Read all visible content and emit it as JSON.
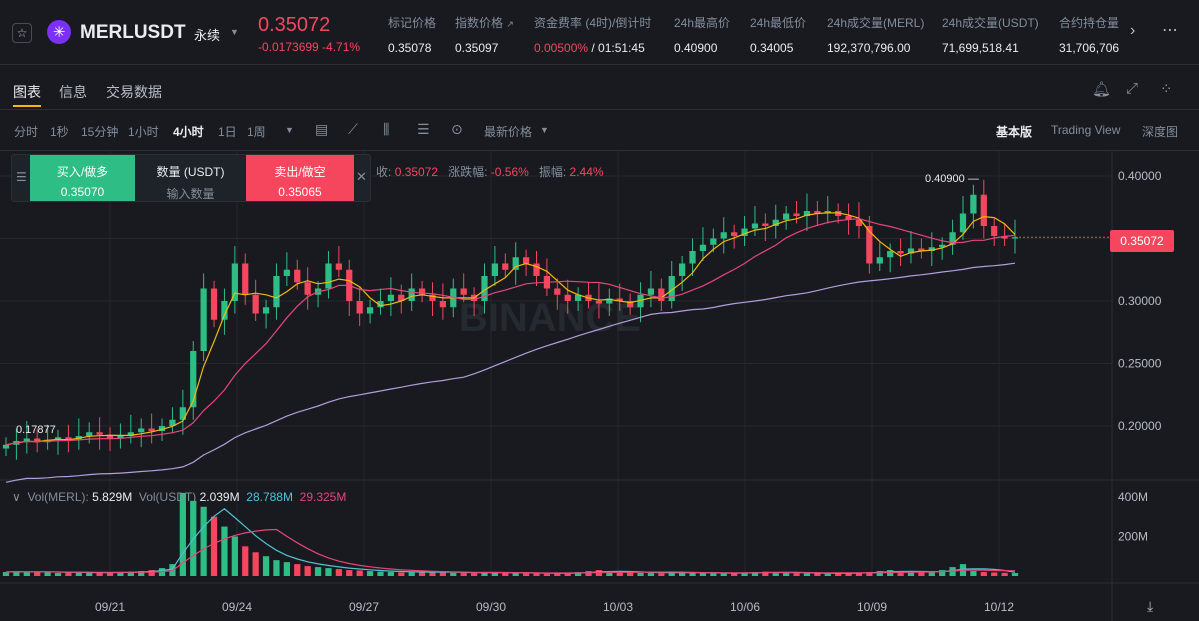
{
  "header": {
    "symbol": "MERLUSDT",
    "contract_type": "永续",
    "last_price": "0.35072",
    "change": "-0.0173699 -4.71%",
    "stats": [
      {
        "label": "标记价格",
        "value": "0.35078"
      },
      {
        "label": "指数价格",
        "value": "0.35097"
      },
      {
        "label": "资金费率 (4时)/倒计时",
        "value_red": "0.00500%",
        "value": " / 01:51:45"
      },
      {
        "label": "24h最高价",
        "value": "0.40900"
      },
      {
        "label": "24h最低价",
        "value": "0.34005"
      },
      {
        "label": "24h成交量(MERL)",
        "value": "192,370,796.00"
      },
      {
        "label": "24h成交量(USDT)",
        "value": "71,699,518.41"
      },
      {
        "label": "合约持仓量",
        "value": "31,706,706"
      }
    ]
  },
  "tabs": [
    "图表",
    "信息",
    "交易数据"
  ],
  "timeframes": [
    "分时",
    "1秒",
    "15分钟",
    "1小时",
    "4小时",
    "1日",
    "1周"
  ],
  "price_type": "最新价格",
  "views": [
    "基本版",
    "Trading View",
    "深度图"
  ],
  "order_panel": {
    "buy_label": "买入/做多",
    "buy_price": "0.35070",
    "qty_label": "数量 (USDT)",
    "qty_placeholder": "输入数量",
    "sell_label": "卖出/做空",
    "sell_price": "0.35065"
  },
  "ohlc_legend": {
    "close_label": "收:",
    "close_value": "0.35072",
    "change_label": "涨跌幅:",
    "change_value": "-0.56%",
    "amp_label": "振幅:",
    "amp_value": "2.44%"
  },
  "volume_legend": {
    "merl_label": "Vol(MERL):",
    "merl_value": "5.829M",
    "usdt_label": "Vol(USDT)",
    "usdt_value": "2.039M",
    "ma1": "28.788M",
    "ma2": "29.325M"
  },
  "current_price_badge": "0.35072",
  "chart_data": {
    "type": "candlestick",
    "x_ticks": [
      "09/21",
      "09/24",
      "09/27",
      "09/30",
      "10/03",
      "10/06",
      "10/09",
      "10/12"
    ],
    "y_ticks": [
      "0.40000",
      "0.35000",
      "0.30000",
      "0.25000",
      "0.20000"
    ],
    "volume_ticks": [
      "400M",
      "200M"
    ],
    "high_label": "0.40900",
    "low_label": "0.17877",
    "ylim": [
      0.16,
      0.42
    ],
    "colors": {
      "up": "#2ebd85",
      "down": "#f6465d",
      "ma_short": "#f0b90b",
      "ma_mid": "#e8457a",
      "ma_long": "#b39ddb",
      "vol_ma1": "#4fc3d6",
      "vol_ma2": "#e8457a"
    },
    "close_prices": [
      0.185,
      0.188,
      0.19,
      0.187,
      0.189,
      0.191,
      0.189,
      0.192,
      0.195,
      0.193,
      0.19,
      0.192,
      0.195,
      0.198,
      0.196,
      0.2,
      0.205,
      0.215,
      0.26,
      0.31,
      0.285,
      0.3,
      0.33,
      0.305,
      0.29,
      0.295,
      0.32,
      0.325,
      0.315,
      0.305,
      0.31,
      0.33,
      0.325,
      0.3,
      0.29,
      0.295,
      0.3,
      0.305,
      0.3,
      0.31,
      0.305,
      0.3,
      0.295,
      0.31,
      0.305,
      0.3,
      0.32,
      0.33,
      0.325,
      0.335,
      0.33,
      0.32,
      0.31,
      0.305,
      0.3,
      0.305,
      0.3,
      0.298,
      0.302,
      0.3,
      0.295,
      0.305,
      0.31,
      0.3,
      0.32,
      0.33,
      0.34,
      0.345,
      0.35,
      0.355,
      0.352,
      0.358,
      0.362,
      0.36,
      0.365,
      0.37,
      0.368,
      0.372,
      0.37,
      0.372,
      0.368,
      0.365,
      0.36,
      0.33,
      0.335,
      0.34,
      0.338,
      0.342,
      0.34,
      0.343,
      0.345,
      0.355,
      0.37,
      0.385,
      0.36,
      0.352,
      0.35,
      0.351
    ],
    "volumes_m": [
      20,
      25,
      18,
      22,
      20,
      15,
      18,
      20,
      16,
      15,
      18,
      20,
      22,
      25,
      30,
      40,
      60,
      420,
      380,
      350,
      300,
      250,
      200,
      150,
      120,
      100,
      80,
      70,
      60,
      50,
      45,
      40,
      35,
      30,
      28,
      25,
      22,
      20,
      18,
      20,
      22,
      20,
      18,
      16,
      15,
      14,
      20,
      18,
      16,
      15,
      14,
      13,
      12,
      14,
      15,
      20,
      25,
      30,
      22,
      20,
      18,
      16,
      15,
      14,
      20,
      18,
      16,
      15,
      14,
      13,
      16,
      18,
      20,
      22,
      18,
      16,
      15,
      14,
      13,
      12,
      14,
      16,
      18,
      20,
      25,
      30,
      22,
      20,
      18,
      22,
      30,
      45,
      60,
      25,
      20,
      18,
      16,
      15
    ]
  }
}
